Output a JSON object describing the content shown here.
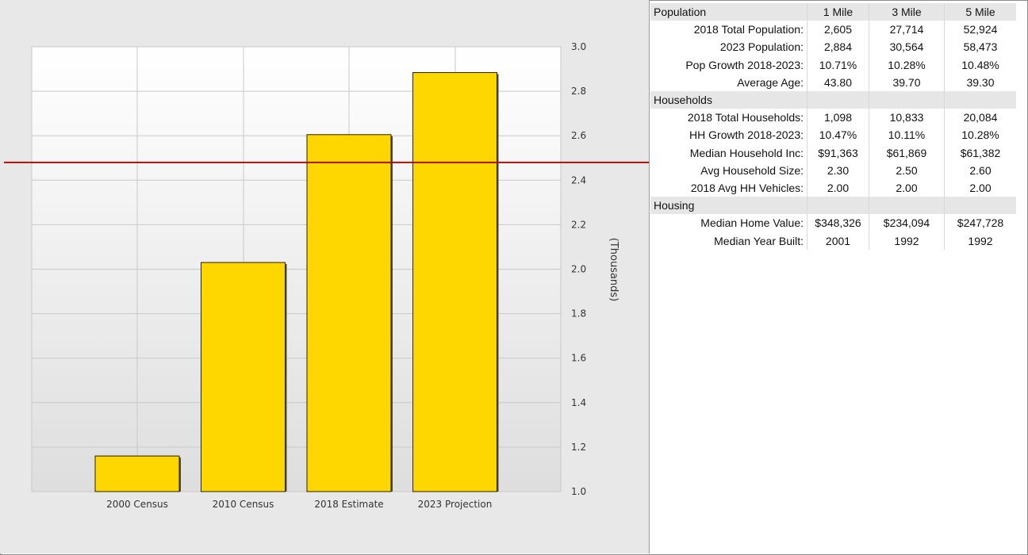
{
  "chart_data": {
    "type": "bar",
    "categories": [
      "2000 Census",
      "2010 Census",
      "2018 Estimate",
      "2023 Projection"
    ],
    "values": [
      1.16,
      2.03,
      2.605,
      2.884
    ],
    "ylim": [
      1.0,
      3.0
    ],
    "yticks": [
      1.0,
      1.2,
      1.4,
      1.6,
      1.8,
      2.0,
      2.2,
      2.4,
      2.6,
      2.8,
      3.0
    ],
    "ytick_labels": [
      "1.0",
      "1.2",
      "1.4",
      "1.6",
      "1.8",
      "2.0",
      "2.2",
      "2.4",
      "2.6",
      "2.8",
      "3.0"
    ],
    "ylabel": "(Thousands)",
    "reference_line": 2.48,
    "grid": true,
    "legend": "none",
    "colors": {
      "bar": "#ffd700",
      "bar_edge": "#2a2000",
      "reference_line": "#a8120c",
      "grid": "#c9c9c9"
    }
  },
  "table": {
    "columns": [
      "1 Mile",
      "3 Mile",
      "5 Mile"
    ],
    "sections": [
      {
        "title": "Population",
        "rows": [
          {
            "label": "2018 Total Population:",
            "values": [
              "2,605",
              "27,714",
              "52,924"
            ]
          },
          {
            "label": "2023 Population:",
            "values": [
              "2,884",
              "30,564",
              "58,473"
            ]
          },
          {
            "label": "Pop Growth 2018-2023:",
            "values": [
              "10.71%",
              "10.28%",
              "10.48%"
            ]
          },
          {
            "label": "Average Age:",
            "values": [
              "43.80",
              "39.70",
              "39.30"
            ]
          }
        ]
      },
      {
        "title": "Households",
        "rows": [
          {
            "label": "2018 Total Households:",
            "values": [
              "1,098",
              "10,833",
              "20,084"
            ]
          },
          {
            "label": "HH Growth 2018-2023:",
            "values": [
              "10.47%",
              "10.11%",
              "10.28%"
            ]
          },
          {
            "label": "Median Household Inc:",
            "values": [
              "$91,363",
              "$61,869",
              "$61,382"
            ]
          },
          {
            "label": "Avg Household Size:",
            "values": [
              "2.30",
              "2.50",
              "2.60"
            ]
          },
          {
            "label": "2018 Avg HH Vehicles:",
            "values": [
              "2.00",
              "2.00",
              "2.00"
            ]
          }
        ]
      },
      {
        "title": "Housing",
        "rows": [
          {
            "label": "Median Home Value:",
            "values": [
              "$348,326",
              "$234,094",
              "$247,728"
            ]
          },
          {
            "label": "Median Year Built:",
            "values": [
              "2001",
              "1992",
              "1992"
            ]
          }
        ]
      }
    ]
  }
}
